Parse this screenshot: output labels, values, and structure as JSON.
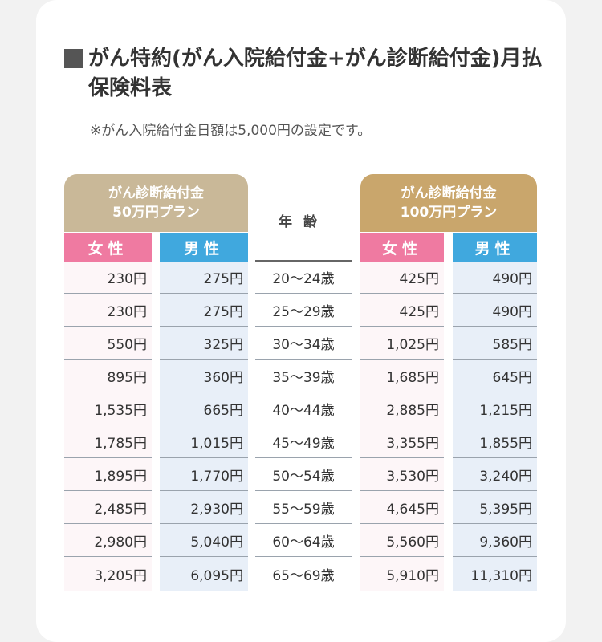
{
  "title": "がん特約(がん入院給付金+がん診断給付金)月払保険料表",
  "note": "※がん入院給付金日額は5,000円の設定です。",
  "plans": [
    {
      "line1": "がん診断給付金",
      "line2": "50万円プラン"
    },
    {
      "line1": "がん診断給付金",
      "line2": "100万円プラン"
    }
  ],
  "age_header": "年齢",
  "female_label": "女性",
  "male_label": "男性",
  "rows": [
    {
      "age": "20〜24歳",
      "p50_f": "230円",
      "p50_m": "275円",
      "p100_f": "425円",
      "p100_m": "490円"
    },
    {
      "age": "25〜29歳",
      "p50_f": "230円",
      "p50_m": "275円",
      "p100_f": "425円",
      "p100_m": "490円"
    },
    {
      "age": "30〜34歳",
      "p50_f": "550円",
      "p50_m": "325円",
      "p100_f": "1,025円",
      "p100_m": "585円"
    },
    {
      "age": "35〜39歳",
      "p50_f": "895円",
      "p50_m": "360円",
      "p100_f": "1,685円",
      "p100_m": "645円"
    },
    {
      "age": "40〜44歳",
      "p50_f": "1,535円",
      "p50_m": "665円",
      "p100_f": "2,885円",
      "p100_m": "1,215円"
    },
    {
      "age": "45〜49歳",
      "p50_f": "1,785円",
      "p50_m": "1,015円",
      "p100_f": "3,355円",
      "p100_m": "1,855円"
    },
    {
      "age": "50〜54歳",
      "p50_f": "1,895円",
      "p50_m": "1,770円",
      "p100_f": "3,530円",
      "p100_m": "3,240円"
    },
    {
      "age": "55〜59歳",
      "p50_f": "2,485円",
      "p50_m": "2,930円",
      "p100_f": "4,645円",
      "p100_m": "5,395円"
    },
    {
      "age": "60〜64歳",
      "p50_f": "2,980円",
      "p50_m": "5,040円",
      "p100_f": "5,560円",
      "p100_m": "9,360円"
    },
    {
      "age": "65〜69歳",
      "p50_f": "3,205円",
      "p50_m": "6,095円",
      "p100_f": "5,910円",
      "p100_m": "11,310円"
    }
  ],
  "colors": {
    "female_header": "#ef7aa1",
    "male_header": "#40a8de",
    "plan50_header": "#c9b898",
    "plan100_header": "#c9a66c",
    "female_col_bg": "#fdf6f8",
    "male_col_bg": "#e8eff8"
  }
}
